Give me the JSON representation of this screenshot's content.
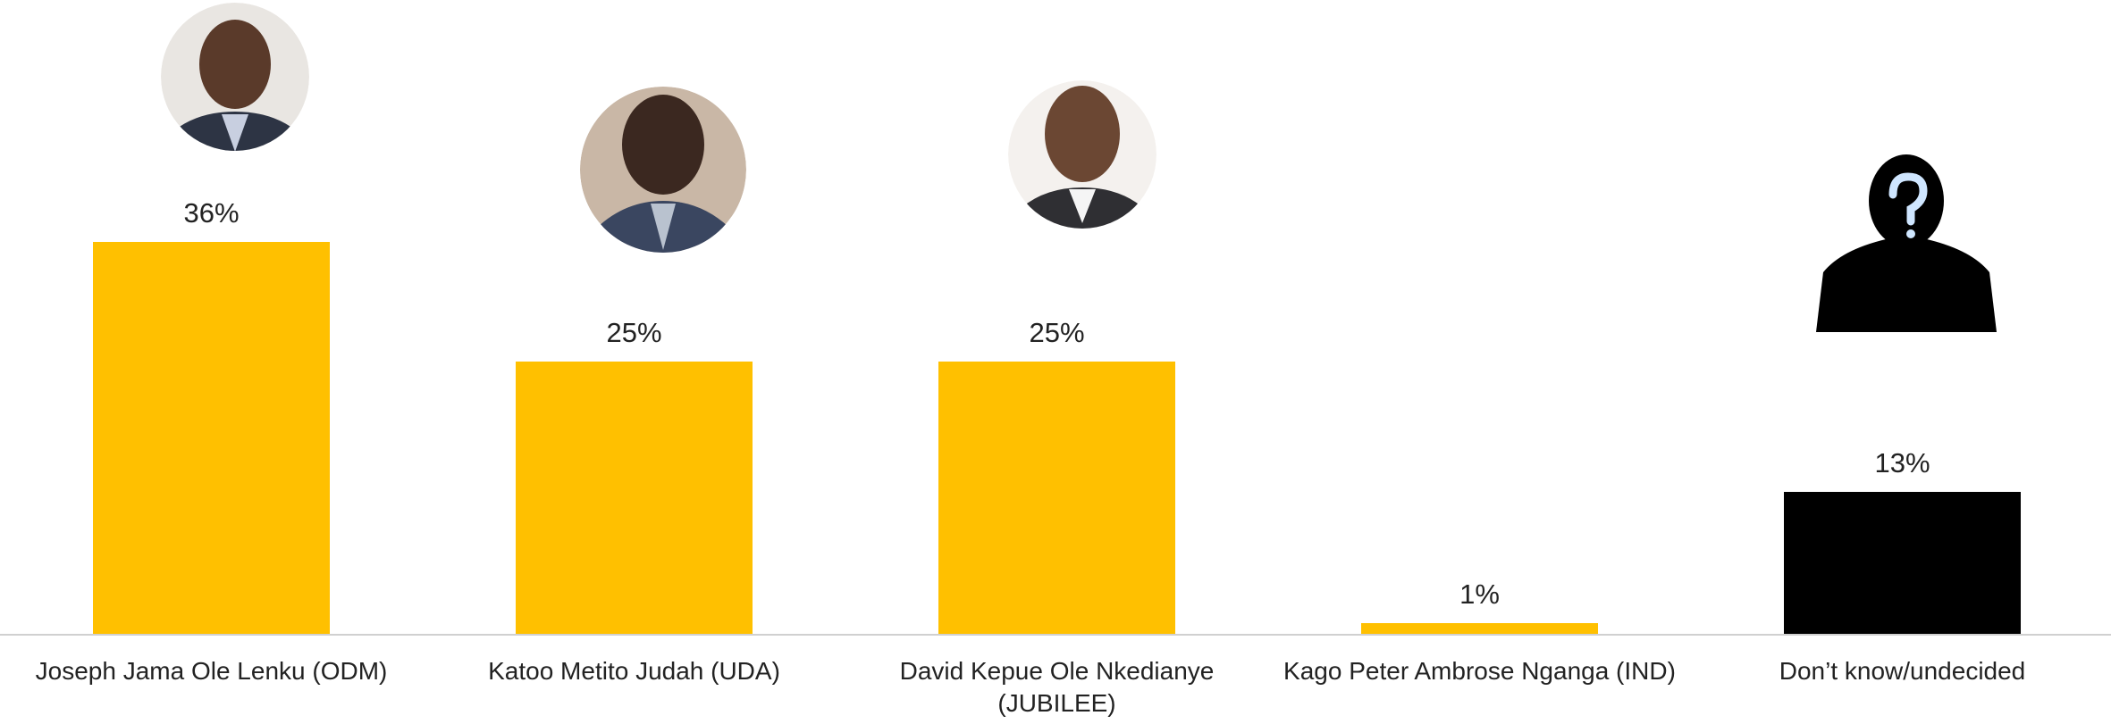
{
  "chart_data": {
    "type": "bar",
    "categories": [
      "Joseph Jama Ole Lenku (ODM)",
      "Katoo Metito Judah (UDA)",
      "David Kepue Ole Nkedianye (JUBILEE)",
      "Kago Peter Ambrose Nganga (IND)",
      "Don’t know/undecided"
    ],
    "values": [
      36,
      25,
      25,
      1,
      13
    ],
    "value_labels": [
      "36%",
      "25%",
      "25%",
      "1%",
      "13%"
    ],
    "colors": [
      "#ffc000",
      "#ffc000",
      "#ffc000",
      "#ffc000",
      "#000000"
    ]
  }
}
